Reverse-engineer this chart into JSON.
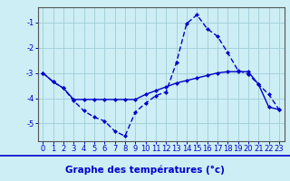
{
  "xlabel": "Graphe des températures (°c)",
  "background_color": "#cceef4",
  "grid_color": "#a0cdd8",
  "line_color": "#0000cc",
  "spine_color": "#555555",
  "ylim": [
    -5.7,
    -0.4
  ],
  "xlim": [
    -0.5,
    23.5
  ],
  "yticks": [
    -5,
    -4,
    -3,
    -2,
    -1
  ],
  "xticks": [
    0,
    1,
    2,
    3,
    4,
    5,
    6,
    7,
    8,
    9,
    10,
    11,
    12,
    13,
    14,
    15,
    16,
    17,
    18,
    19,
    20,
    21,
    22,
    23
  ],
  "series1_x": [
    0,
    1,
    2,
    3,
    4,
    5,
    6,
    7,
    8,
    9,
    10,
    11,
    12,
    13,
    14,
    15,
    16,
    17,
    18,
    19,
    20,
    21,
    22,
    23
  ],
  "series1_y": [
    -3.0,
    -3.35,
    -3.6,
    -4.1,
    -4.5,
    -4.75,
    -4.9,
    -5.3,
    -5.5,
    -4.55,
    -4.2,
    -3.9,
    -3.75,
    -2.6,
    -1.05,
    -0.7,
    -1.25,
    -1.55,
    -2.2,
    -2.9,
    -3.05,
    -3.45,
    -3.85,
    -4.45
  ],
  "series2_x": [
    0,
    1,
    2,
    3,
    4,
    5,
    6,
    7,
    8,
    9,
    10,
    11,
    12,
    13,
    14,
    15,
    16,
    17,
    18,
    19,
    20,
    21,
    22,
    23
  ],
  "series2_y": [
    -3.0,
    -3.35,
    -3.6,
    -4.05,
    -4.05,
    -4.05,
    -4.05,
    -4.05,
    -4.05,
    -4.05,
    -3.85,
    -3.7,
    -3.55,
    -3.4,
    -3.3,
    -3.2,
    -3.1,
    -3.0,
    -2.95,
    -2.95,
    -2.95,
    -3.45,
    -4.35,
    -4.45
  ],
  "markersize": 2.5,
  "linewidth": 1.0,
  "tick_fontsize": 6.0,
  "label_fontsize": 7.5
}
